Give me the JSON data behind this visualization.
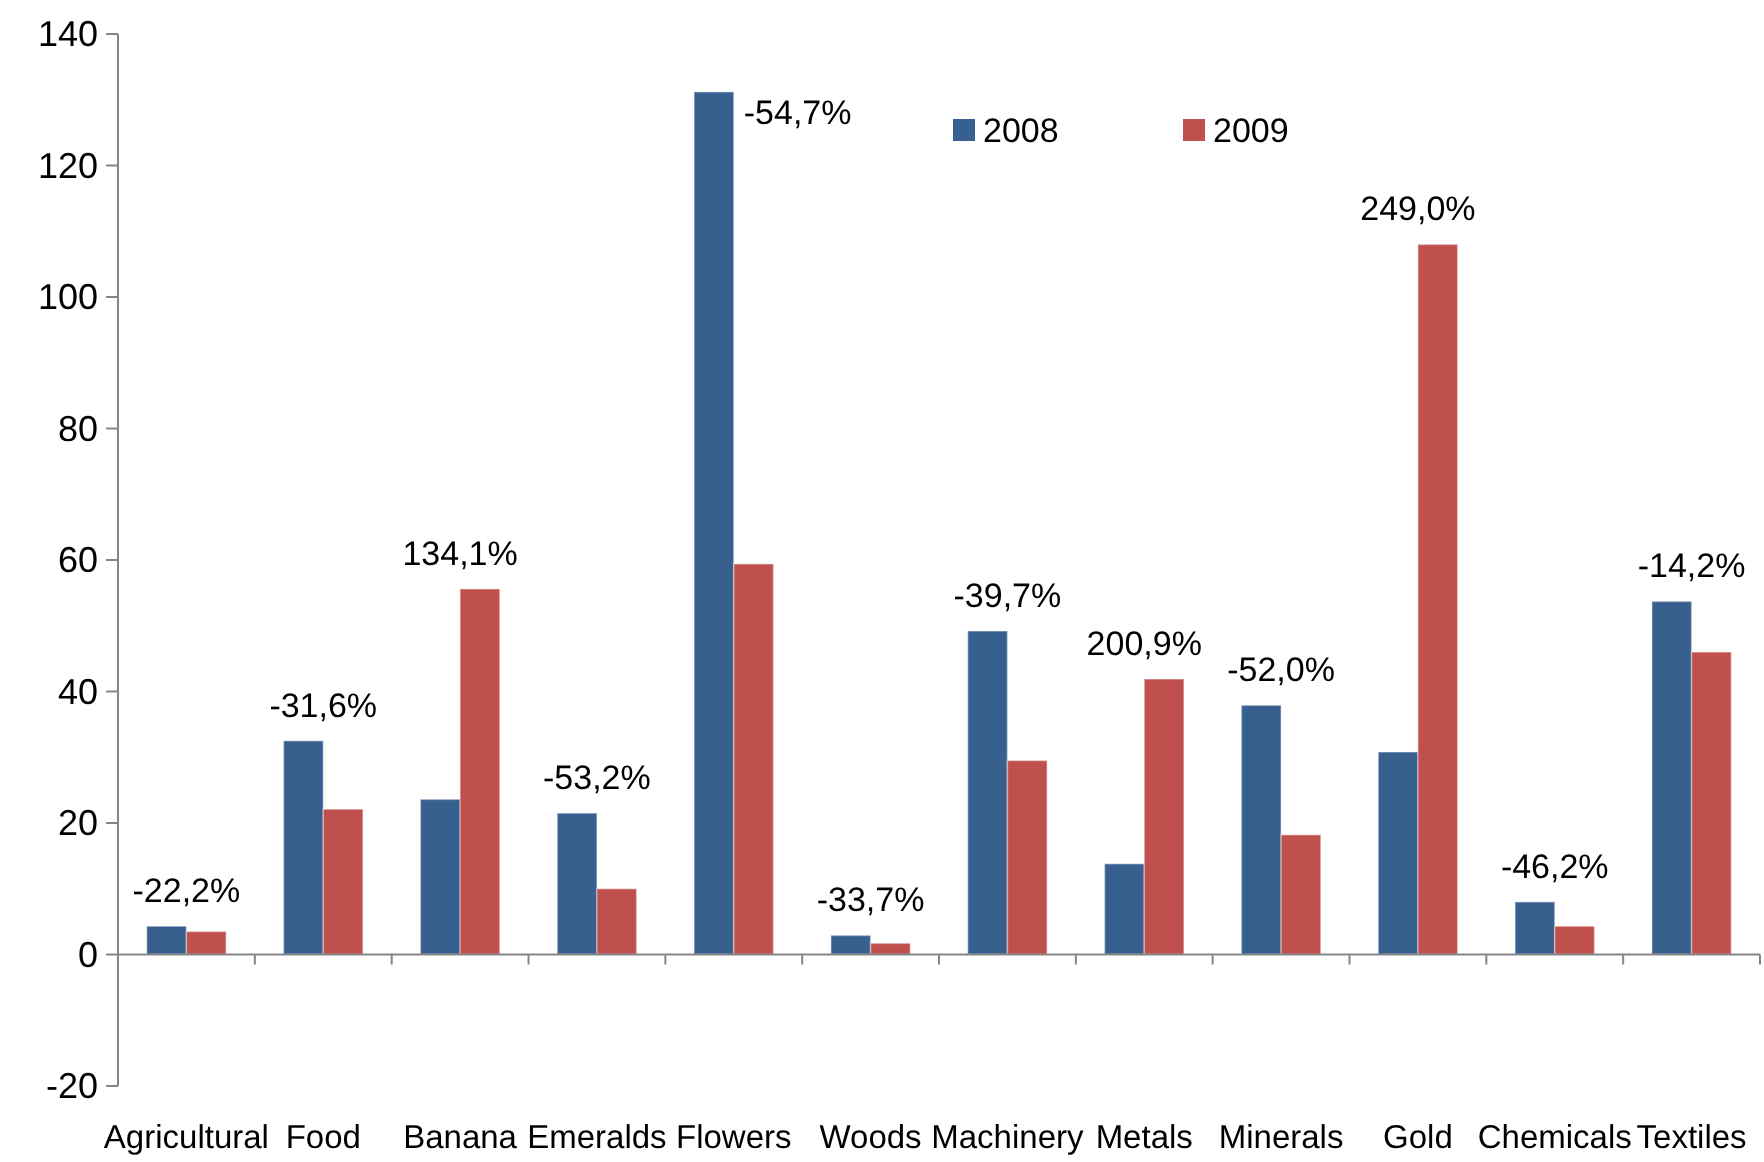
{
  "chart_data": {
    "type": "bar",
    "categories": [
      "Agricultural",
      "Food",
      "Banana",
      "Emeralds",
      "Flowers",
      "Woods",
      "Machinery",
      "Metals",
      "Minerals",
      "Gold",
      "Chemicals",
      "Textiles"
    ],
    "series": [
      {
        "name": "2008",
        "color": "#38608f",
        "values": [
          4.3,
          32.5,
          23.6,
          21.5,
          131.2,
          2.9,
          49.2,
          13.8,
          37.9,
          30.8,
          8.0,
          53.7
        ]
      },
      {
        "name": "2009",
        "color": "#c0504d",
        "values": [
          3.5,
          22.1,
          55.6,
          10.0,
          59.4,
          1.7,
          29.5,
          41.9,
          18.2,
          108.0,
          4.3,
          46.0
        ]
      }
    ],
    "ylim": [
      -20,
      140
    ],
    "yticks": [
      -20,
      0,
      20,
      40,
      60,
      80,
      100,
      120,
      140
    ],
    "legend": "top",
    "annotations": [
      {
        "text": "-22,2%",
        "x": "Agricultural",
        "y": 4.3
      },
      {
        "text": "-31,6%",
        "x": "Food",
        "y": 32.5
      },
      {
        "text": "134,1%",
        "x": "Banana",
        "y": 55.6
      },
      {
        "text": "-53,2%",
        "x": "Emeralds",
        "y": 21.5
      },
      {
        "text": "-54,7%",
        "x": "Flowers",
        "y": 131.2
      },
      {
        "text": "-33,7%",
        "x": "Woods",
        "y": 2.9
      },
      {
        "text": "-39,7%",
        "x": "Machinery",
        "y": 49.2
      },
      {
        "text": "200,9%",
        "x": "Metals",
        "y": 41.9
      },
      {
        "text": "-52,0%",
        "x": "Minerals",
        "y": 37.9
      },
      {
        "text": "249,0%",
        "x": "Gold",
        "y": 108.0
      },
      {
        "text": "-46,2%",
        "x": "Chemicals",
        "y": 8.0
      },
      {
        "text": "-14,2%",
        "x": "Textiles",
        "y": 53.7
      }
    ]
  }
}
